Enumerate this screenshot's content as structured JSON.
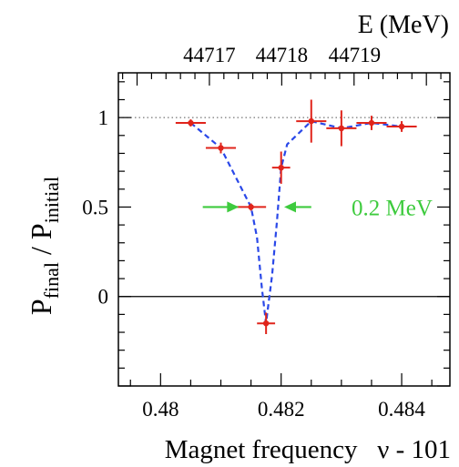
{
  "chart_data": {
    "type": "scatter",
    "title": "",
    "xlabel": "Magnet frequency   ν - 101",
    "ylabel": {
      "main": "P",
      "sub1": "final",
      "sep": " / ",
      "main2": "P",
      "sub2": "initial"
    },
    "top_axis_label": "E (MeV)",
    "xlim": [
      0.4793,
      0.4848
    ],
    "ylim": [
      -0.5,
      1.25
    ],
    "x_ticks": [
      {
        "value": 0.48,
        "label": "0.48"
      },
      {
        "value": 0.482,
        "label": "0.482"
      },
      {
        "value": 0.484,
        "label": "0.484"
      }
    ],
    "y_ticks": [
      {
        "value": 0,
        "label": "0"
      },
      {
        "value": 0.5,
        "label": "0.5"
      },
      {
        "value": 1,
        "label": "1"
      }
    ],
    "top_ticks": [
      {
        "x": 0.48081,
        "label": "44717"
      },
      {
        "x": 0.48201,
        "label": "44718"
      },
      {
        "x": 0.48322,
        "label": "44719"
      }
    ],
    "points": [
      {
        "x": 0.4805,
        "y": 0.97,
        "xerr": 0.00025,
        "yerr": 0.02
      },
      {
        "x": 0.481,
        "y": 0.83,
        "xerr": 0.00025,
        "yerr": 0.03
      },
      {
        "x": 0.4815,
        "y": 0.5,
        "xerr": 0.00025,
        "yerr": 0.02
      },
      {
        "x": 0.48175,
        "y": -0.15,
        "xerr": 0.00015,
        "yerr": 0.06
      },
      {
        "x": 0.482,
        "y": 0.72,
        "xerr": 0.00015,
        "yerr": 0.09
      },
      {
        "x": 0.4825,
        "y": 0.98,
        "xerr": 0.00025,
        "yerr": 0.12
      },
      {
        "x": 0.483,
        "y": 0.94,
        "xerr": 0.00025,
        "yerr": 0.1
      },
      {
        "x": 0.4835,
        "y": 0.97,
        "xerr": 0.00025,
        "yerr": 0.04
      },
      {
        "x": 0.484,
        "y": 0.95,
        "xerr": 0.00025,
        "yerr": 0.03
      }
    ],
    "fit_curve": [
      [
        0.4805,
        0.97
      ],
      [
        0.481,
        0.83
      ],
      [
        0.4815,
        0.5
      ],
      [
        0.4816,
        0.33
      ],
      [
        0.48168,
        0.05
      ],
      [
        0.48175,
        -0.15
      ],
      [
        0.48185,
        0.12
      ],
      [
        0.48193,
        0.42
      ],
      [
        0.482,
        0.72
      ],
      [
        0.4821,
        0.85
      ],
      [
        0.4825,
        0.98
      ],
      [
        0.483,
        0.94
      ],
      [
        0.4835,
        0.97
      ],
      [
        0.484,
        0.95
      ]
    ],
    "reference_lines": [
      {
        "y": 1,
        "style": "dotted"
      },
      {
        "y": 0,
        "style": "solid"
      }
    ],
    "annotation": {
      "text": "0.2 MeV",
      "y": 0.5,
      "left_arrow_x": [
        0.4807,
        0.4813
      ],
      "right_arrow_x": [
        0.4825,
        0.48205
      ]
    },
    "colors": {
      "points": "#e0241b",
      "fit": "#2a48e8",
      "annotation": "#3ecb3e",
      "axes": "#000000"
    }
  }
}
